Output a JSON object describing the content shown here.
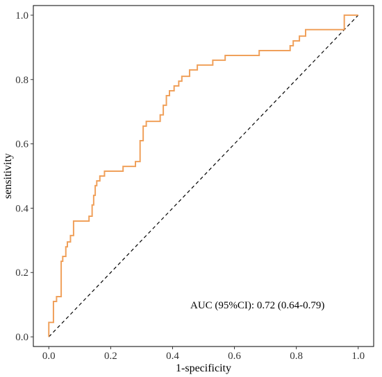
{
  "chart_data": {
    "type": "line",
    "title": "",
    "xlabel": "1-specificity",
    "ylabel": "sensitivity",
    "xlim": [
      -0.05,
      1.05
    ],
    "ylim": [
      -0.03,
      1.03
    ],
    "x_ticks": [
      "0.0",
      "0.2",
      "0.4",
      "0.6",
      "0.8",
      "1.0"
    ],
    "y_ticks": [
      "0.0",
      "0.2",
      "0.4",
      "0.6",
      "0.8",
      "1.0"
    ],
    "grid": false,
    "legend": "none",
    "annotation": "AUC (95%CI): 0.72 (0.64-0.79)",
    "series": [
      {
        "color": "#f0a05a",
        "x": [
          0,
          0,
          0.015,
          0.015,
          0.025,
          0.025,
          0.04,
          0.04,
          0.045,
          0.045,
          0.055,
          0.055,
          0.06,
          0.06,
          0.07,
          0.07,
          0.08,
          0.08,
          0.13,
          0.13,
          0.14,
          0.14,
          0.145,
          0.145,
          0.15,
          0.15,
          0.155,
          0.155,
          0.165,
          0.165,
          0.18,
          0.18,
          0.24,
          0.24,
          0.28,
          0.28,
          0.295,
          0.295,
          0.305,
          0.305,
          0.315,
          0.315,
          0.36,
          0.36,
          0.37,
          0.37,
          0.38,
          0.38,
          0.39,
          0.39,
          0.405,
          0.405,
          0.42,
          0.42,
          0.43,
          0.43,
          0.44,
          0.44,
          0.455,
          0.455,
          0.48,
          0.48,
          0.53,
          0.53,
          0.57,
          0.57,
          0.61,
          0.61,
          0.68,
          0.68,
          0.78,
          0.78,
          0.79,
          0.79,
          0.81,
          0.81,
          0.83,
          0.83,
          0.955,
          0.955,
          1.0
        ],
        "y": [
          0,
          0.045,
          0.045,
          0.11,
          0.11,
          0.125,
          0.125,
          0.235,
          0.235,
          0.25,
          0.25,
          0.28,
          0.28,
          0.295,
          0.295,
          0.315,
          0.315,
          0.36,
          0.36,
          0.375,
          0.375,
          0.41,
          0.41,
          0.44,
          0.44,
          0.47,
          0.47,
          0.485,
          0.485,
          0.5,
          0.5,
          0.515,
          0.515,
          0.53,
          0.53,
          0.545,
          0.545,
          0.61,
          0.61,
          0.655,
          0.655,
          0.67,
          0.67,
          0.69,
          0.69,
          0.72,
          0.72,
          0.75,
          0.75,
          0.765,
          0.765,
          0.78,
          0.78,
          0.795,
          0.795,
          0.81,
          0.81,
          0.81,
          0.81,
          0.83,
          0.83,
          0.845,
          0.845,
          0.86,
          0.86,
          0.875,
          0.875,
          0.875,
          0.875,
          0.89,
          0.89,
          0.905,
          0.905,
          0.92,
          0.92,
          0.935,
          0.935,
          0.955,
          0.955,
          1.0,
          1.0
        ]
      }
    ],
    "reference_line": {
      "x": [
        0,
        1
      ],
      "y": [
        0,
        1
      ],
      "color": "#000000",
      "style": "dashed"
    }
  }
}
